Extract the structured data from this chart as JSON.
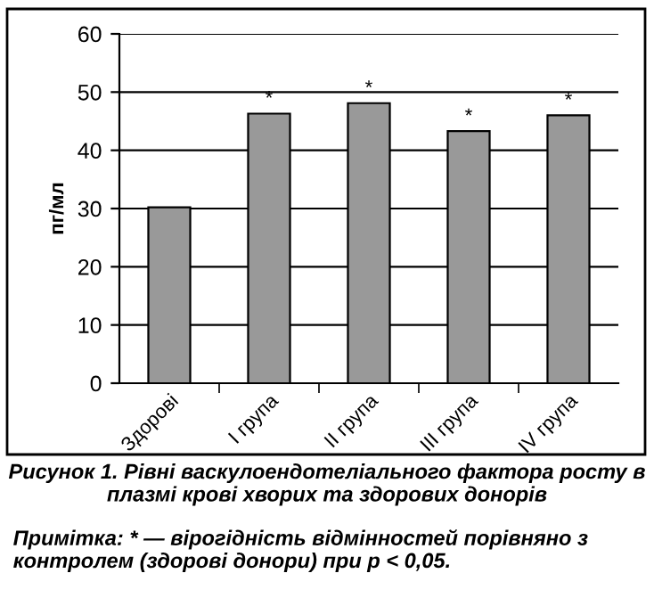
{
  "chart_data": {
    "type": "bar",
    "title": "Рисунок 1. Рівні васкулоендотеліального фактора росту в плазмі крові хворих та здорових донорів",
    "ylabel": "пг/мл",
    "categories": [
      "Здорові",
      "I група",
      "II група",
      "III група",
      "IV група"
    ],
    "values": [
      30.2,
      46.3,
      48.1,
      43.3,
      46.0
    ],
    "color": "#999999",
    "ylim": [
      0,
      60
    ],
    "yticks": [
      0,
      10,
      20,
      30,
      40,
      50,
      60
    ],
    "grid": "y",
    "annotations": [
      {
        "text": "*",
        "x": "I група",
        "y": 46.3
      },
      {
        "text": "*",
        "x": "II група",
        "y": 48.1
      },
      {
        "text": "*",
        "x": "III група",
        "y": 43.3
      },
      {
        "text": "*",
        "x": "IV група",
        "y": 46.0
      },
      "Примітка: * — вірогідність відмінностей порівняно з контролем (здорові донори) при p < 0,05."
    ]
  }
}
